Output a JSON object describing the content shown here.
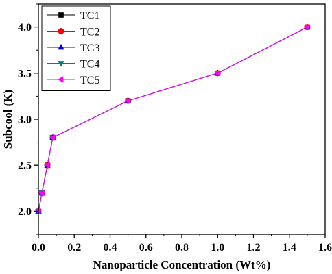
{
  "chart_data": {
    "type": "line",
    "xlabel": "Nanoparticle Concentration (Wt%)",
    "ylabel": "Subcool (K)",
    "xlim": [
      0.0,
      1.6
    ],
    "ylim": [
      1.75,
      4.25
    ],
    "x_ticks": [
      "0.0",
      "0.2",
      "0.4",
      "0.6",
      "0.8",
      "1.0",
      "1.2",
      "1.4",
      "1.6"
    ],
    "y_ticks": [
      "2.0",
      "2.5",
      "3.0",
      "3.5",
      "4.0"
    ],
    "x_tick_values": [
      0.0,
      0.2,
      0.4,
      0.6,
      0.8,
      1.0,
      1.2,
      1.4,
      1.6
    ],
    "y_tick_values": [
      2.0,
      2.5,
      3.0,
      3.5,
      4.0
    ],
    "x": [
      0.0,
      0.02,
      0.05,
      0.08,
      0.5,
      1.0,
      1.5
    ],
    "grid": false,
    "legend_position": "top-left",
    "series": [
      {
        "name": "TC1",
        "color": "#000000",
        "marker": "square",
        "values": [
          2.0,
          2.2,
          2.5,
          2.8,
          3.2,
          3.5,
          4.0
        ]
      },
      {
        "name": "TC2",
        "color": "#ff0000",
        "marker": "circle",
        "values": [
          2.0,
          2.2,
          2.5,
          2.8,
          3.2,
          3.5,
          4.0
        ]
      },
      {
        "name": "TC3",
        "color": "#0000ff",
        "marker": "triangle-up",
        "values": [
          2.0,
          2.2,
          2.5,
          2.8,
          3.2,
          3.5,
          4.0
        ]
      },
      {
        "name": "TC4",
        "color": "#008080",
        "marker": "triangle-down",
        "values": [
          2.0,
          2.2,
          2.5,
          2.8,
          3.2,
          3.5,
          4.0
        ]
      },
      {
        "name": "TC5",
        "color": "#ff00ff",
        "marker": "triangle-left",
        "values": [
          2.0,
          2.2,
          2.5,
          2.8,
          3.2,
          3.5,
          4.0
        ]
      }
    ]
  }
}
